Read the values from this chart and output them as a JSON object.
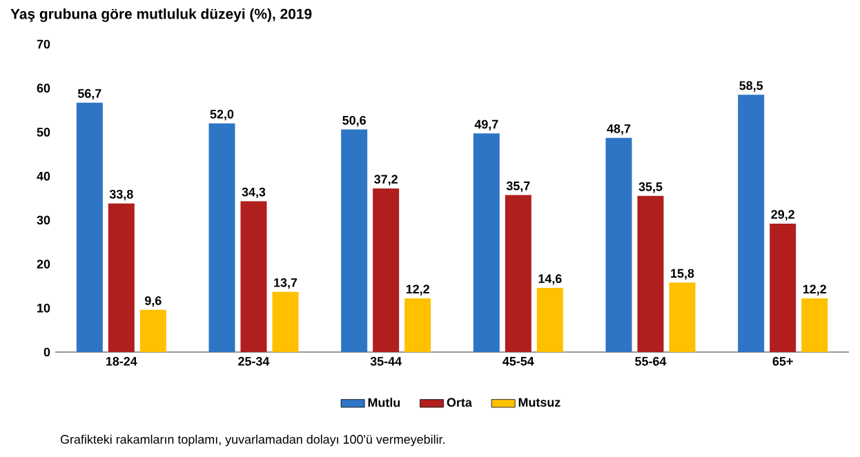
{
  "chart_data": {
    "type": "bar",
    "title": "Yaş grubuna göre mutluluk düzeyi (%), 2019",
    "categories": [
      "18-24",
      "25-34",
      "35-44",
      "45-54",
      "55-64",
      "65+"
    ],
    "series": [
      {
        "name": "Mutlu",
        "color": "#2e75c6",
        "values": [
          56.7,
          52.0,
          50.6,
          49.7,
          48.7,
          58.5
        ],
        "value_labels": [
          "56,7",
          "52,0",
          "50,6",
          "49,7",
          "48,7",
          "58,5"
        ]
      },
      {
        "name": "Orta",
        "color": "#b01e1e",
        "values": [
          33.8,
          34.3,
          37.2,
          35.7,
          35.5,
          29.2
        ],
        "value_labels": [
          "33,8",
          "34,3",
          "37,2",
          "35,7",
          "35,5",
          "29,2"
        ]
      },
      {
        "name": "Mutsuz",
        "color": "#ffc000",
        "values": [
          9.6,
          13.7,
          12.2,
          14.6,
          15.8,
          12.2
        ],
        "value_labels": [
          "9,6",
          "13,7",
          "12,2",
          "14,6",
          "15,8",
          "12,2"
        ]
      }
    ],
    "ylim": [
      0,
      70
    ],
    "yticks": [
      0,
      10,
      20,
      30,
      40,
      50,
      60,
      70
    ],
    "legend": "bottom",
    "annotations": [
      "Grafikteki rakamların toplamı, yuvarlamadan dolayı 100'ü vermeyebilir."
    ]
  }
}
